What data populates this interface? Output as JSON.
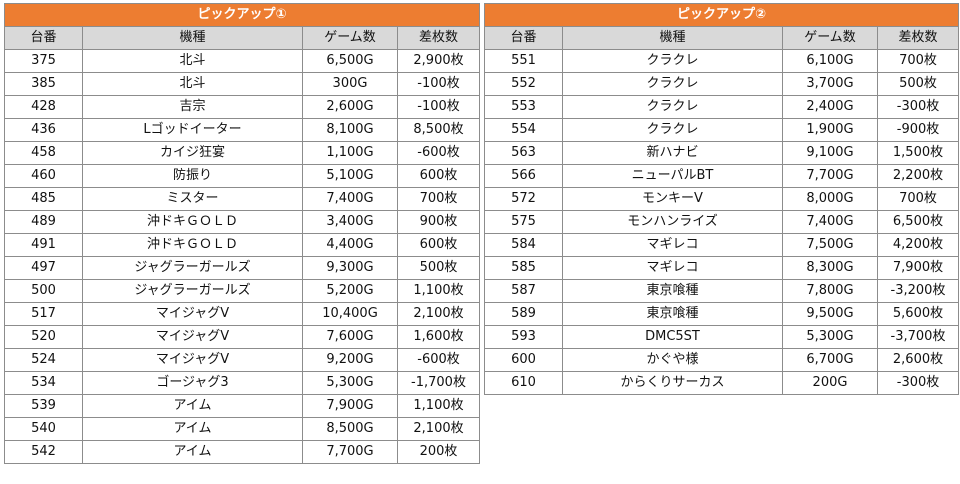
{
  "tables": [
    {
      "title": "ピックアップ①",
      "headers": [
        "台番",
        "機種",
        "ゲーム数",
        "差枚数"
      ],
      "rows": [
        [
          "375",
          "北斗",
          "6,500G",
          "2,900枚"
        ],
        [
          "385",
          "北斗",
          "300G",
          "-100枚"
        ],
        [
          "428",
          "吉宗",
          "2,600G",
          "-100枚"
        ],
        [
          "436",
          "Lゴッドイーター",
          "8,100G",
          "8,500枚"
        ],
        [
          "458",
          "カイジ狂宴",
          "1,100G",
          "-600枚"
        ],
        [
          "460",
          "防振り",
          "5,100G",
          "600枚"
        ],
        [
          "485",
          "ミスター",
          "7,400G",
          "700枚"
        ],
        [
          "489",
          "沖ドキＧＯＬＤ",
          "3,400G",
          "900枚"
        ],
        [
          "491",
          "沖ドキＧＯＬＤ",
          "4,400G",
          "600枚"
        ],
        [
          "497",
          "ジャグラーガールズ",
          "9,300G",
          "500枚"
        ],
        [
          "500",
          "ジャグラーガールズ",
          "5,200G",
          "1,100枚"
        ],
        [
          "517",
          "マイジャグV",
          "10,400G",
          "2,100枚"
        ],
        [
          "520",
          "マイジャグV",
          "7,600G",
          "1,600枚"
        ],
        [
          "524",
          "マイジャグV",
          "9,200G",
          "-600枚"
        ],
        [
          "534",
          "ゴージャグ3",
          "5,300G",
          "-1,700枚"
        ],
        [
          "539",
          "アイム",
          "7,900G",
          "1,100枚"
        ],
        [
          "540",
          "アイム",
          "8,500G",
          "2,100枚"
        ],
        [
          "542",
          "アイム",
          "7,700G",
          "200枚"
        ]
      ]
    },
    {
      "title": "ピックアップ②",
      "headers": [
        "台番",
        "機種",
        "ゲーム数",
        "差枚数"
      ],
      "rows": [
        [
          "551",
          "クラクレ",
          "6,100G",
          "700枚"
        ],
        [
          "552",
          "クラクレ",
          "3,700G",
          "500枚"
        ],
        [
          "553",
          "クラクレ",
          "2,400G",
          "-300枚"
        ],
        [
          "554",
          "クラクレ",
          "1,900G",
          "-900枚"
        ],
        [
          "563",
          "新ハナビ",
          "9,100G",
          "1,500枚"
        ],
        [
          "566",
          "ニューパルBT",
          "7,700G",
          "2,200枚"
        ],
        [
          "572",
          "モンキーV",
          "8,000G",
          "700枚"
        ],
        [
          "575",
          "モンハンライズ",
          "7,400G",
          "6,500枚"
        ],
        [
          "584",
          "マギレコ",
          "7,500G",
          "4,200枚"
        ],
        [
          "585",
          "マギレコ",
          "8,300G",
          "7,900枚"
        ],
        [
          "587",
          "東京喰種",
          "7,800G",
          "-3,200枚"
        ],
        [
          "589",
          "東京喰種",
          "9,500G",
          "5,600枚"
        ],
        [
          "593",
          "DMC5ST",
          "5,300G",
          "-3,700枚"
        ],
        [
          "600",
          "かぐや様",
          "6,700G",
          "2,600枚"
        ],
        [
          "610",
          "からくりサーカス",
          "200G",
          "-300枚"
        ]
      ]
    }
  ]
}
